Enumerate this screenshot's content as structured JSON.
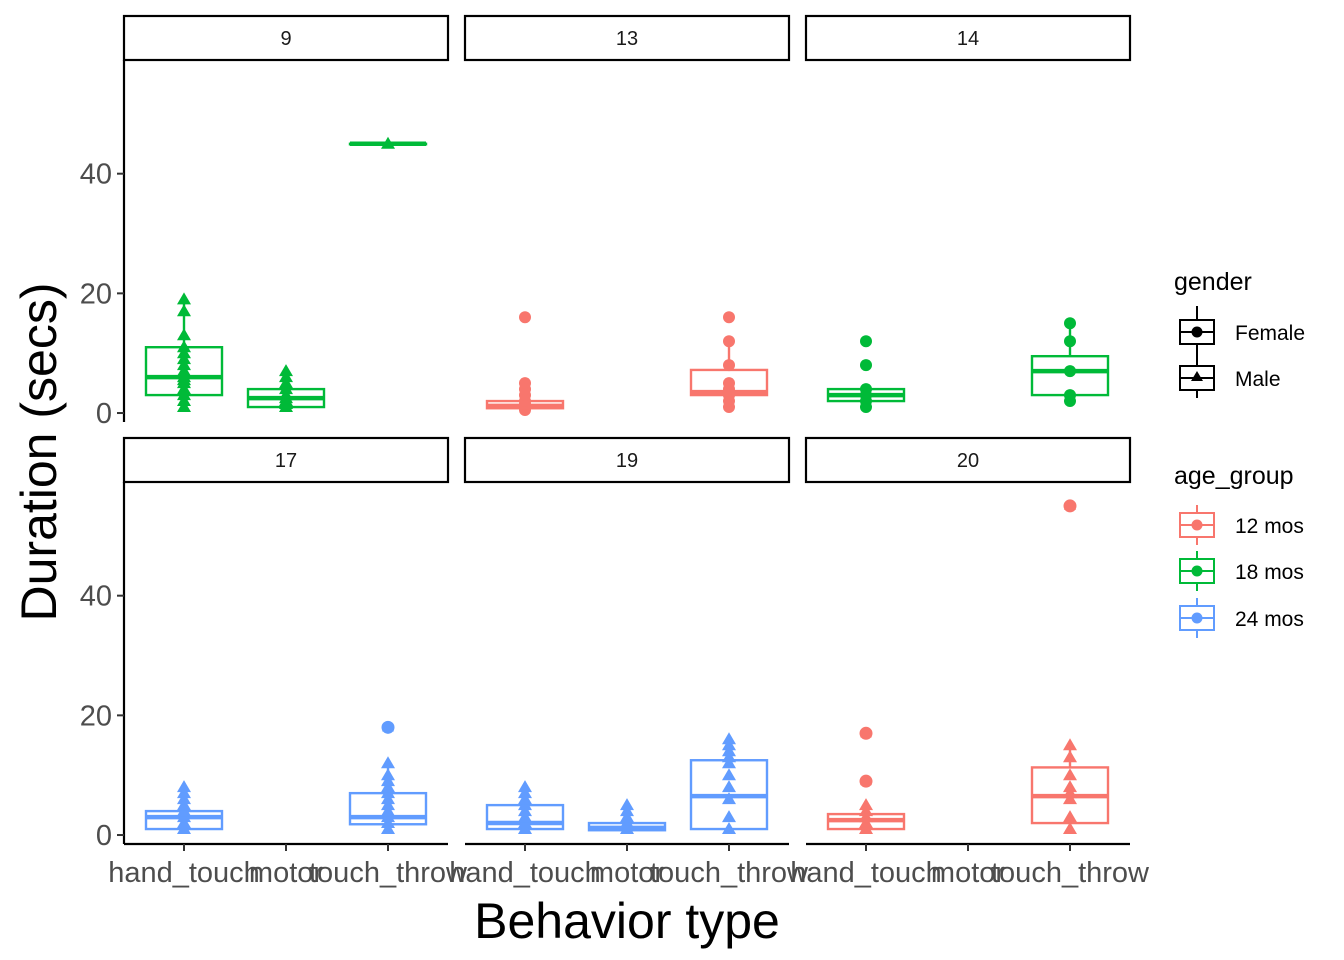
{
  "chart_data": {
    "type": "box",
    "xlabel": "Behavior type",
    "ylabel": "Duration (secs)",
    "categories": [
      "hand_touch",
      "motor",
      "touch_throw"
    ],
    "y_ticks": [
      0,
      20,
      40
    ],
    "ylim": [
      -1.5,
      59
    ],
    "grid": false,
    "legend_placement": "right",
    "colors": {
      "12 mos": "#F8766D",
      "18 mos": "#00BA38",
      "24 mos": "#619CFF"
    },
    "legends": {
      "gender": {
        "title": "gender",
        "items": [
          {
            "label": "Female",
            "shape": "circle"
          },
          {
            "label": "Male",
            "shape": "triangle"
          }
        ]
      },
      "age_group": {
        "title": "age_group",
        "items": [
          {
            "label": "12 mos"
          },
          {
            "label": "18 mos"
          },
          {
            "label": "24 mos"
          }
        ]
      }
    },
    "panels": [
      {
        "label": "9",
        "age_group": "18 mos",
        "gender": "Male",
        "boxes": [
          {
            "category": "hand_touch",
            "q1": 3,
            "median": 6,
            "q3": 11,
            "whisker_low": 1,
            "whisker_high": 19,
            "points": [
              1,
              2,
              3,
              4,
              5,
              5.5,
              6,
              7,
              8,
              9,
              10,
              11,
              13,
              17,
              19
            ]
          },
          {
            "category": "motor",
            "q1": 1,
            "median": 2.5,
            "q3": 4,
            "whisker_low": 1,
            "whisker_high": 7,
            "points": [
              1,
              1.5,
              2,
              2.5,
              3,
              4,
              5,
              6,
              7
            ]
          },
          {
            "category": "touch_throw",
            "q1": 45,
            "median": 45,
            "q3": 45,
            "whisker_low": 45,
            "whisker_high": 45,
            "points": [
              45
            ]
          }
        ]
      },
      {
        "label": "13",
        "age_group": "12 mos",
        "gender": "Female",
        "boxes": [
          {
            "category": "hand_touch",
            "q1": 0.8,
            "median": 1.2,
            "q3": 2,
            "whisker_low": 0.5,
            "whisker_high": 2,
            "points": [
              0.5,
              1,
              1.5,
              2,
              3,
              4,
              5,
              16
            ]
          },
          {
            "category": "touch_throw",
            "q1": 3,
            "median": 3.5,
            "q3": 7.2,
            "whisker_low": 1,
            "whisker_high": 12,
            "points": [
              1,
              2,
              3,
              4,
              5,
              8,
              12,
              16
            ]
          }
        ]
      },
      {
        "label": "14",
        "age_group": "18 mos",
        "gender": "Female",
        "boxes": [
          {
            "category": "hand_touch",
            "q1": 2,
            "median": 3,
            "q3": 4,
            "whisker_low": 1,
            "whisker_high": 4,
            "points": [
              1,
              2,
              3,
              4,
              8,
              12
            ]
          },
          {
            "category": "touch_throw",
            "q1": 3,
            "median": 7,
            "q3": 9.5,
            "whisker_low": 2,
            "whisker_high": 15,
            "points": [
              2,
              3,
              7,
              12,
              15
            ]
          }
        ]
      },
      {
        "label": "17",
        "age_group": "24 mos",
        "gender": "Male",
        "boxes": [
          {
            "category": "hand_touch",
            "q1": 1,
            "median": 3,
            "q3": 4,
            "whisker_low": 1,
            "whisker_high": 8,
            "points": [
              1,
              2,
              3,
              4,
              5,
              6,
              7,
              8
            ]
          },
          {
            "category": "touch_throw",
            "q1": 1.8,
            "median": 3,
            "q3": 7,
            "whisker_low": 1,
            "whisker_high": 12,
            "points": [
              1,
              2,
              3,
              4,
              5,
              6,
              7,
              8,
              9,
              10,
              12
            ],
            "outliers_circle": [
              18
            ]
          }
        ]
      },
      {
        "label": "19",
        "age_group": "24 mos",
        "gender": "Male",
        "boxes": [
          {
            "category": "hand_touch",
            "q1": 1,
            "median": 2,
            "q3": 5,
            "whisker_low": 1,
            "whisker_high": 8,
            "points": [
              1,
              2,
              3,
              4,
              5,
              6,
              7,
              8
            ]
          },
          {
            "category": "motor",
            "q1": 0.8,
            "median": 1.2,
            "q3": 2,
            "whisker_low": 0.8,
            "whisker_high": 2,
            "points": [
              1,
              2,
              3,
              4,
              5
            ]
          },
          {
            "category": "touch_throw",
            "q1": 1,
            "median": 6.5,
            "q3": 12.5,
            "whisker_low": 1,
            "whisker_high": 16,
            "points": [
              1,
              3,
              6,
              8,
              10,
              12,
              13,
              14,
              15,
              16
            ]
          }
        ]
      },
      {
        "label": "20",
        "age_group": "12 mos",
        "gender": "Male",
        "boxes": [
          {
            "category": "hand_touch",
            "q1": 1,
            "median": 2.5,
            "q3": 3.5,
            "whisker_low": 1,
            "whisker_high": 3.5,
            "points": [
              1,
              2,
              3,
              4,
              5
            ],
            "outliers_circle": [
              9,
              17
            ]
          },
          {
            "category": "touch_throw",
            "q1": 2,
            "median": 6.5,
            "q3": 11.3,
            "whisker_low": 1,
            "whisker_high": 15,
            "points": [
              1,
              3,
              6,
              7,
              8,
              10,
              13,
              15
            ],
            "outliers_circle": [
              55
            ]
          }
        ]
      }
    ]
  }
}
